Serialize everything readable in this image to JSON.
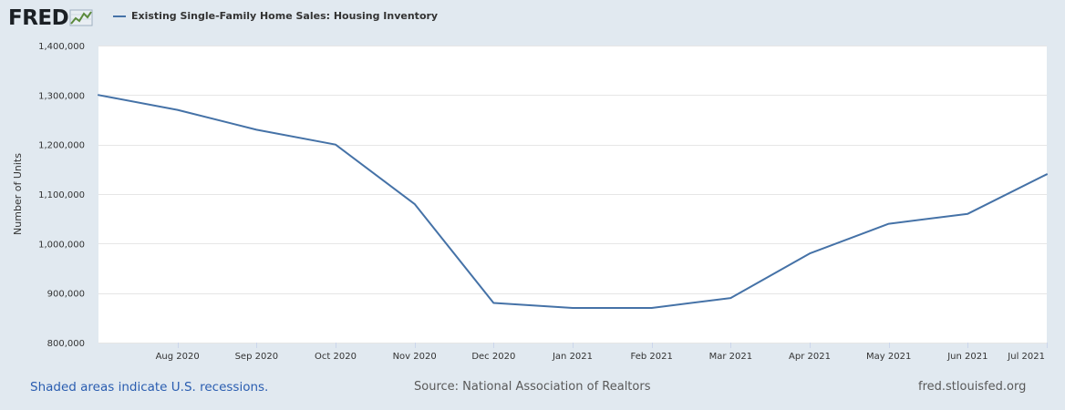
{
  "logo": {
    "text": "FRED",
    "icon": "fred-chart-icon"
  },
  "legend": {
    "label": "Existing Single-Family Home Sales: Housing Inventory"
  },
  "chart_data": {
    "type": "line",
    "title": "Existing Single-Family Home Sales: Housing Inventory",
    "xlabel": "",
    "ylabel": "Number of Units",
    "x": [
      "Jul 2020",
      "Aug 2020",
      "Sep 2020",
      "Oct 2020",
      "Nov 2020",
      "Dec 2020",
      "Jan 2021",
      "Feb 2021",
      "Mar 2021",
      "Apr 2021",
      "May 2021",
      "Jun 2021",
      "Jul 2021"
    ],
    "x_tick_labels": [
      "Aug 2020",
      "Sep 2020",
      "Oct 2020",
      "Nov 2020",
      "Dec 2020",
      "Jan 2021",
      "Feb 2021",
      "Mar 2021",
      "Apr 2021",
      "May 2021",
      "Jun 2021",
      "Jul 2021"
    ],
    "series": [
      {
        "name": "Existing Single-Family Home Sales: Housing Inventory",
        "color": "#4572a7",
        "values": [
          1300000,
          1270000,
          1230000,
          1200000,
          1080000,
          880000,
          870000,
          870000,
          890000,
          980000,
          1040000,
          1060000,
          1140000
        ]
      }
    ],
    "ylim": [
      800000,
      1400000
    ],
    "y_ticks": [
      800000,
      900000,
      1000000,
      1100000,
      1200000,
      1300000,
      1400000
    ],
    "y_tick_labels": [
      "800,000",
      "900,000",
      "1,000,000",
      "1,100,000",
      "1,200,000",
      "1,300,000",
      "1,400,000"
    ],
    "grid": true,
    "legend_position": "top-left"
  },
  "footer": {
    "recession_note": "Shaded areas indicate U.S. recessions.",
    "source": "Source: National Association of Realtors",
    "site": "fred.stlouisfed.org"
  },
  "colors": {
    "background": "#e1e9f0",
    "plot_background": "#ffffff",
    "series": "#4572a7",
    "grid": "#e6e6e6"
  }
}
